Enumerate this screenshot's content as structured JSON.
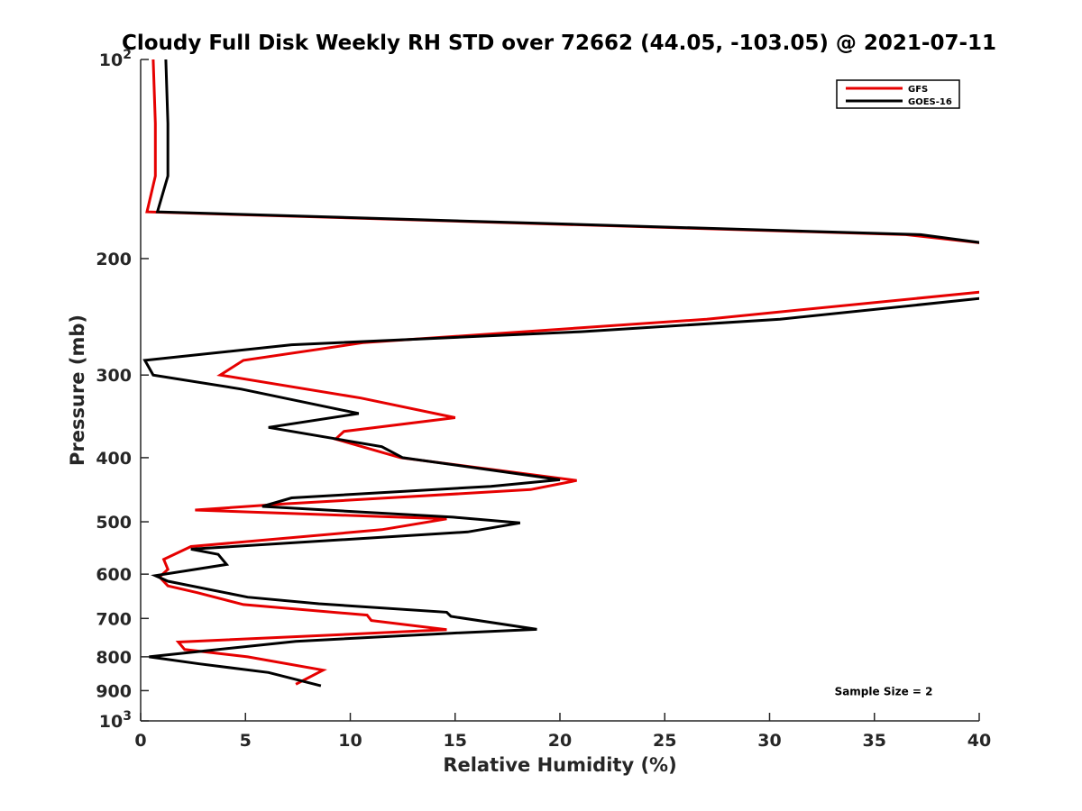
{
  "chart_data": {
    "type": "line",
    "title": "Cloudy Full Disk Weekly RH STD over 72662 (44.05, -103.05) @ 2021-07-11",
    "xlabel": "Relative Humidity (%)",
    "ylabel": "Pressure (mb)",
    "xlim": [
      0,
      40
    ],
    "ylim": [
      100,
      1000
    ],
    "y_scale": "log",
    "y_reversed": true,
    "grid": false,
    "legend_position": "top-right",
    "x_ticks": [
      {
        "value": 0,
        "label": "0"
      },
      {
        "value": 5,
        "label": "5"
      },
      {
        "value": 10,
        "label": "10"
      },
      {
        "value": 15,
        "label": "15"
      },
      {
        "value": 20,
        "label": "20"
      },
      {
        "value": 25,
        "label": "25"
      },
      {
        "value": 30,
        "label": "30"
      },
      {
        "value": 35,
        "label": "35"
      },
      {
        "value": 40,
        "label": "40"
      }
    ],
    "y_ticks": [
      {
        "value": 100,
        "label": "10",
        "sup": "2"
      },
      {
        "value": 200,
        "label": "200"
      },
      {
        "value": 300,
        "label": "300"
      },
      {
        "value": 400,
        "label": "400"
      },
      {
        "value": 500,
        "label": "500"
      },
      {
        "value": 600,
        "label": "600"
      },
      {
        "value": 700,
        "label": "700"
      },
      {
        "value": 800,
        "label": "800"
      },
      {
        "value": 900,
        "label": "900"
      },
      {
        "value": 1000,
        "label": "10",
        "sup": "3"
      }
    ],
    "series": [
      {
        "name": "GFS",
        "color": "#e60000",
        "points": [
          [
            0.6,
            100
          ],
          [
            0.7,
            125
          ],
          [
            0.7,
            150
          ],
          [
            0.3,
            170
          ],
          [
            36.5,
            184
          ],
          [
            40.5,
            190
          ],
          [
            40.5,
            224
          ],
          [
            27,
            247
          ],
          [
            10.6,
            268
          ],
          [
            4.9,
            285
          ],
          [
            3.8,
            300
          ],
          [
            10.5,
            325
          ],
          [
            15.0,
            348
          ],
          [
            9.7,
            365
          ],
          [
            9.3,
            375
          ],
          [
            12.4,
            400
          ],
          [
            20.8,
            433
          ],
          [
            18.6,
            447
          ],
          [
            6.8,
            470
          ],
          [
            2.6,
            480
          ],
          [
            14.6,
            495
          ],
          [
            11.5,
            514
          ],
          [
            2.4,
            545
          ],
          [
            1.1,
            570
          ],
          [
            1.3,
            590
          ],
          [
            0.9,
            606
          ],
          [
            1.3,
            625
          ],
          [
            2.7,
            640
          ],
          [
            4.9,
            667
          ],
          [
            10.8,
            692
          ],
          [
            11.0,
            705
          ],
          [
            14.6,
            728
          ],
          [
            9.8,
            740
          ],
          [
            1.8,
            760
          ],
          [
            2.1,
            780
          ],
          [
            5.1,
            800
          ],
          [
            8.7,
            838
          ],
          [
            7.4,
            880
          ]
        ]
      },
      {
        "name": "GOES-16",
        "color": "#000000",
        "points": [
          [
            1.2,
            100
          ],
          [
            1.3,
            125
          ],
          [
            1.3,
            150
          ],
          [
            0.8,
            170
          ],
          [
            37.2,
            184
          ],
          [
            40.5,
            190
          ],
          [
            40.5,
            229
          ],
          [
            30.5,
            247
          ],
          [
            21,
            258
          ],
          [
            7.2,
            270
          ],
          [
            0.2,
            285
          ],
          [
            0.6,
            300
          ],
          [
            4.8,
            315
          ],
          [
            10.4,
            343
          ],
          [
            6.1,
            360
          ],
          [
            11.5,
            385
          ],
          [
            12.5,
            400
          ],
          [
            20.0,
            432
          ],
          [
            16.7,
            442
          ],
          [
            7.2,
            460
          ],
          [
            5.8,
            474
          ],
          [
            14.9,
            492
          ],
          [
            18.1,
            502
          ],
          [
            15.6,
            518
          ],
          [
            2.4,
            550
          ],
          [
            3.7,
            560
          ],
          [
            4.1,
            580
          ],
          [
            0.7,
            603
          ],
          [
            1.3,
            615
          ],
          [
            5.1,
            650
          ],
          [
            8.5,
            665
          ],
          [
            14.6,
            685
          ],
          [
            14.8,
            695
          ],
          [
            18.9,
            727
          ],
          [
            14.8,
            737
          ],
          [
            7.4,
            758
          ],
          [
            0.4,
            800
          ],
          [
            2.8,
            820
          ],
          [
            6.1,
            845
          ],
          [
            8.6,
            885
          ]
        ]
      }
    ],
    "annotations": [
      {
        "text": "Sample Size = 2",
        "x": 33.1,
        "y": 915
      }
    ]
  }
}
